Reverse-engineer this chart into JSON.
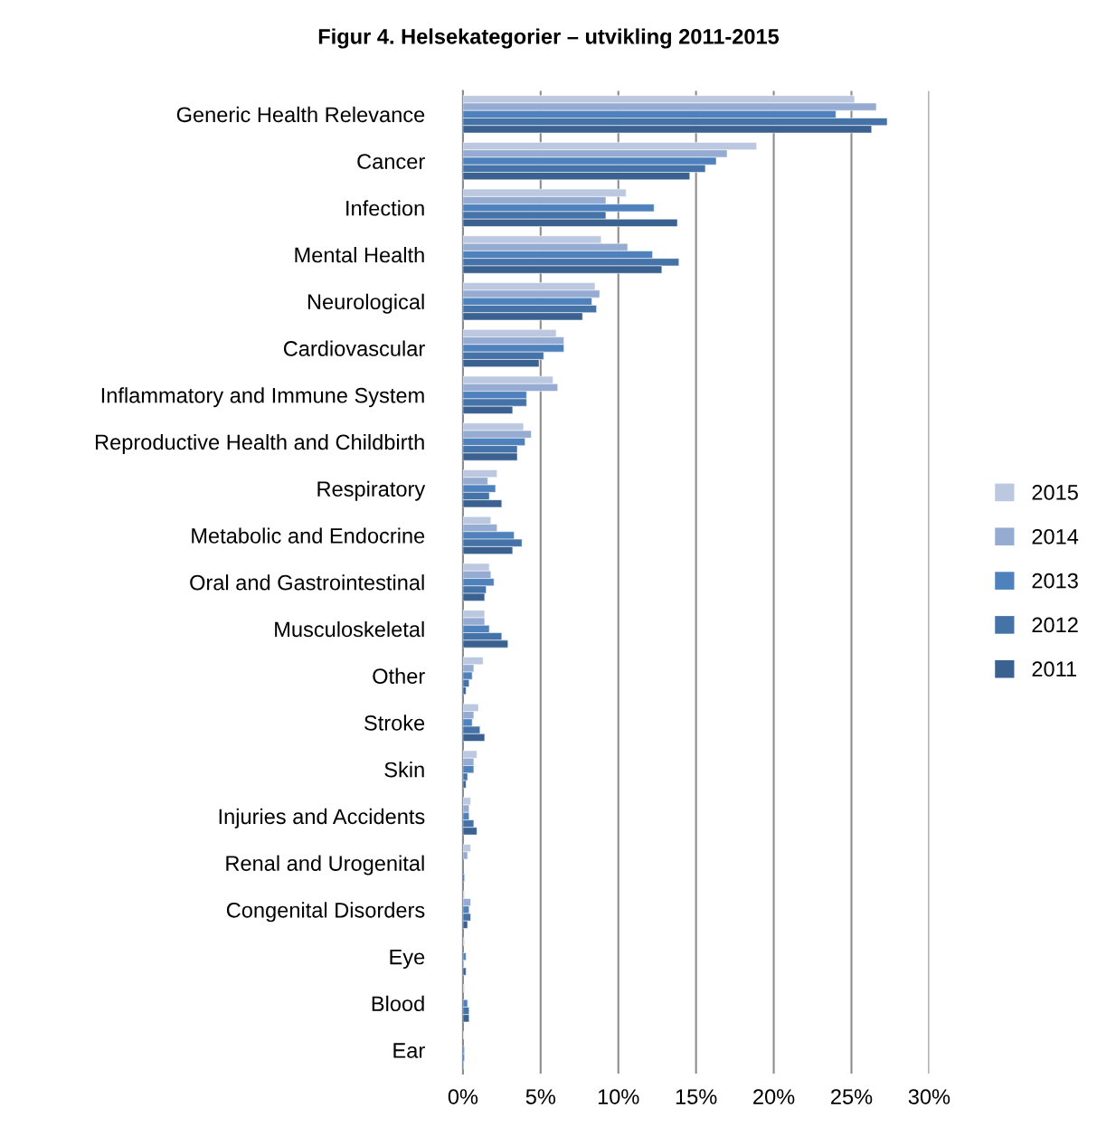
{
  "chart_data": {
    "type": "bar",
    "orientation": "horizontal",
    "title": "Figur 4. Helsekategorier – utvikling 2011-2015",
    "categories": [
      "Generic Health Relevance",
      "Cancer",
      "Infection",
      "Mental Health",
      "Neurological",
      "Cardiovascular",
      "Inflammatory and Immune System",
      "Reproductive Health and Childbirth",
      "Respiratory",
      "Metabolic and Endocrine",
      "Oral and Gastrointestinal",
      "Musculoskeletal",
      "Other",
      "Stroke",
      "Skin",
      "Injuries and Accidents",
      "Renal and Urogenital",
      "Congenital Disorders",
      "Eye",
      "Blood",
      "Ear"
    ],
    "series": [
      {
        "name": "2015",
        "color": "#bcc8e0",
        "values": [
          25.2,
          18.9,
          10.5,
          8.9,
          8.5,
          6.0,
          5.8,
          3.9,
          2.2,
          1.8,
          1.7,
          1.4,
          1.3,
          1.0,
          0.9,
          0.5,
          0.5,
          0.1,
          0.1,
          0.1,
          0.05
        ]
      },
      {
        "name": "2014",
        "color": "#95abd2",
        "values": [
          26.6,
          17.0,
          9.2,
          10.6,
          8.8,
          6.5,
          6.1,
          4.4,
          1.6,
          2.2,
          1.8,
          1.4,
          0.7,
          0.7,
          0.7,
          0.4,
          0.3,
          0.5,
          null,
          null,
          null
        ]
      },
      {
        "name": "2013",
        "color": "#4f81bd",
        "values": [
          24.0,
          16.3,
          12.3,
          12.2,
          8.3,
          6.5,
          4.1,
          4.0,
          2.1,
          3.3,
          2.0,
          1.7,
          0.6,
          0.6,
          0.7,
          0.4,
          null,
          0.4,
          0.2,
          0.3,
          0.1
        ]
      },
      {
        "name": "2012",
        "color": "#4572a7",
        "values": [
          27.3,
          15.6,
          9.2,
          13.9,
          8.6,
          5.2,
          4.1,
          3.5,
          1.7,
          3.8,
          1.5,
          2.5,
          0.4,
          1.1,
          0.3,
          0.7,
          null,
          0.5,
          0.05,
          0.4,
          0.1
        ]
      },
      {
        "name": "2011",
        "color": "#3b6190",
        "values": [
          26.3,
          14.6,
          13.8,
          12.8,
          7.7,
          4.9,
          3.2,
          3.5,
          2.5,
          3.2,
          1.4,
          2.9,
          0.2,
          1.4,
          0.2,
          0.9,
          0.1,
          0.3,
          0.2,
          0.4,
          0.05
        ]
      }
    ],
    "xlim": [
      0,
      30
    ],
    "xticks": [
      {
        "value": 0,
        "label": "0%"
      },
      {
        "value": 5,
        "label": "5%"
      },
      {
        "value": 10,
        "label": "10%"
      },
      {
        "value": 15,
        "label": "15%"
      },
      {
        "value": 20,
        "label": "20%"
      },
      {
        "value": 25,
        "label": "25%"
      },
      {
        "value": 30,
        "label": "30%"
      }
    ],
    "grid": "x",
    "legend": "right"
  }
}
